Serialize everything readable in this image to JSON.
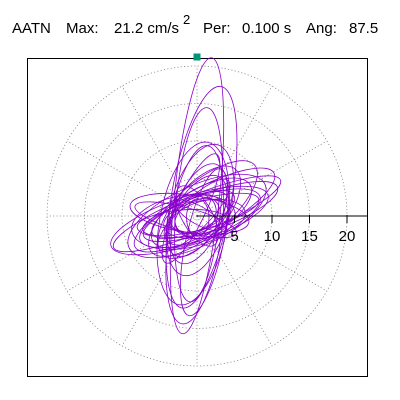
{
  "header": {
    "station": "AATN",
    "max_label": "Max:",
    "max_value": "21.2 cm/s",
    "max_exp": "2",
    "per_label": "Per:",
    "per_value": "0.100 s",
    "ang_label": "Ang:",
    "ang_value": "87.5"
  },
  "chart_data": {
    "type": "polar-orbit",
    "title": "",
    "radial_axis": {
      "min": 0,
      "max": 20,
      "ticks": [
        5,
        10,
        15,
        20
      ],
      "tick_labels": [
        "5",
        "10",
        "15",
        "20"
      ]
    },
    "grid": "dotted concentric circles every 5 with radial lines every 30 degrees",
    "series": [
      {
        "color": "#8800cc",
        "description": "particle-motion orbit: ellipses of varying size and orientation, mostly aligned NNE-SSW and WSW-ENE",
        "ellipses": [
          {
            "a": 3.2,
            "b": 2.0,
            "deg": 30,
            "cx": 0,
            "cy": 0
          },
          {
            "a": 4.0,
            "b": 1.8,
            "deg": 20,
            "cx": 0.3,
            "cy": 0
          },
          {
            "a": 5.0,
            "b": 2.6,
            "deg": 35,
            "cx": 0,
            "cy": -0.3
          },
          {
            "a": 6.0,
            "b": 2.2,
            "deg": 25,
            "cx": -0.5,
            "cy": 0.2
          },
          {
            "a": 7.5,
            "b": 3.2,
            "deg": 30,
            "cx": 0.6,
            "cy": 0.4
          },
          {
            "a": 8.5,
            "b": 2.8,
            "deg": 20,
            "cx": 0.4,
            "cy": -0.3
          },
          {
            "a": 10.0,
            "b": 4.0,
            "deg": 25,
            "cx": 0,
            "cy": 0
          },
          {
            "a": 11.0,
            "b": 3.2,
            "deg": 18,
            "cx": -1.0,
            "cy": -0.6
          },
          {
            "a": 9.5,
            "b": 2.5,
            "deg": 20,
            "cx": 1.8,
            "cy": 0.6
          },
          {
            "a": 12.0,
            "b": 2.5,
            "deg": 22,
            "cx": 0,
            "cy": 0.3
          },
          {
            "a": 6.5,
            "b": 2.0,
            "deg": 45,
            "cx": -0.4,
            "cy": 0.1
          },
          {
            "a": 7.0,
            "b": 3.5,
            "deg": 10,
            "cx": -1.8,
            "cy": -0.8
          },
          {
            "a": 8.0,
            "b": 2.0,
            "deg": 15,
            "cx": 0.5,
            "cy": 0.2
          },
          {
            "a": 10.5,
            "b": 3.0,
            "deg": 28,
            "cx": 1.0,
            "cy": 0.8
          },
          {
            "a": 6.0,
            "b": 1.8,
            "deg": 5,
            "cx": -2.0,
            "cy": -1.0
          },
          {
            "a": 8.0,
            "b": 2.5,
            "deg": -8,
            "cx": -1.0,
            "cy": 0.3
          },
          {
            "a": 7.0,
            "b": 1.6,
            "deg": -15,
            "cx": -1.5,
            "cy": -0.5
          },
          {
            "a": 5.5,
            "b": 2.5,
            "deg": 10,
            "cx": 1.0,
            "cy": -0.4
          },
          {
            "a": 9.0,
            "b": 3.5,
            "deg": 40,
            "cx": 0.8,
            "cy": 1.0
          },
          {
            "a": 6.0,
            "b": 3.0,
            "deg": 60,
            "cx": 0,
            "cy": 0
          },
          {
            "a": 7.0,
            "b": 3.2,
            "deg": 70,
            "cx": 0.2,
            "cy": 0.3
          },
          {
            "a": 9.0,
            "b": 4.0,
            "deg": 75,
            "cx": 0.4,
            "cy": 0.8
          },
          {
            "a": 11.0,
            "b": 4.5,
            "deg": 80,
            "cx": -0.5,
            "cy": -1.0
          },
          {
            "a": 13.0,
            "b": 3.0,
            "deg": 85,
            "cx": 0.2,
            "cy": 1.5
          },
          {
            "a": 15.0,
            "b": 4.0,
            "deg": 80,
            "cx": 0.6,
            "cy": 2.5
          },
          {
            "a": 12.0,
            "b": 3.5,
            "deg": 82,
            "cx": -0.3,
            "cy": -2.5
          },
          {
            "a": 18.5,
            "b": 3.0,
            "deg": 84,
            "cx": 0.0,
            "cy": 2.7
          },
          {
            "a": 10.0,
            "b": 2.5,
            "deg": 78,
            "cx": 1.0,
            "cy": -3.5
          },
          {
            "a": 8.0,
            "b": 2.0,
            "deg": 65,
            "cx": -0.8,
            "cy": 1.0
          },
          {
            "a": 7.5,
            "b": 3.5,
            "deg": 50,
            "cx": 0.3,
            "cy": 0.5
          },
          {
            "a": 4.0,
            "b": 3.0,
            "deg": 0,
            "cx": 0.3,
            "cy": 0
          },
          {
            "a": 3.0,
            "b": 2.5,
            "deg": 45,
            "cx": -0.2,
            "cy": 0.1
          },
          {
            "a": 2.5,
            "b": 1.5,
            "deg": 90,
            "cx": 0.1,
            "cy": -0.2
          },
          {
            "a": 4.5,
            "b": 2.0,
            "deg": 120,
            "cx": 0.0,
            "cy": 0.0
          },
          {
            "a": 3.5,
            "b": 1.2,
            "deg": 150,
            "cx": 0.2,
            "cy": 0.1
          }
        ]
      }
    ],
    "max_marker": {
      "color": "#009977",
      "r": 21.2,
      "angle_deg": 87.5
    }
  }
}
